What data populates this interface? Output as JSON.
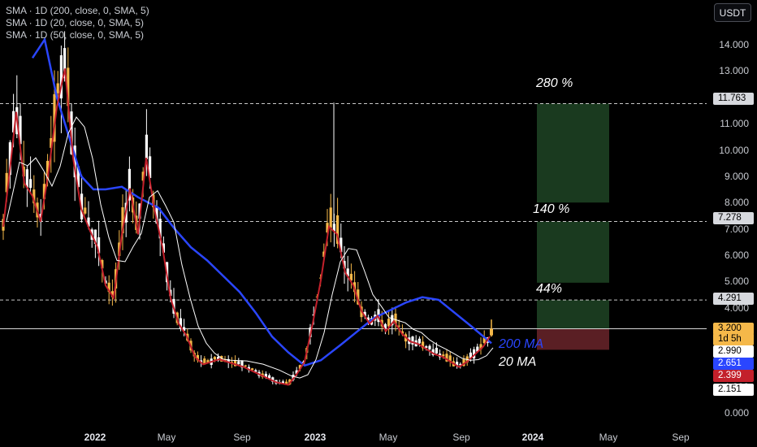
{
  "legend": [
    "SMA · 1D (200, close, 0, SMA, 5)",
    "SMA · 1D (20, close, 0, SMA, 5)",
    "SMA · 1D (50, close, 0, SMA, 5)"
  ],
  "currency_label": "USDT",
  "chart_data": {
    "type": "candlestick",
    "y_axis_ticks": [
      "14.000",
      "13.000",
      "12.000",
      "11.000",
      "10.000",
      "9.000",
      "8.000",
      "7.000",
      "6.000",
      "5.000",
      "4.000",
      "3.000",
      "2.000",
      "1.000",
      "0.000"
    ],
    "x_axis_ticks": [
      "2022",
      "May",
      "Sep",
      "2023",
      "May",
      "Sep",
      "2024",
      "May",
      "Sep"
    ],
    "price_levels": [
      {
        "label": "11.763",
        "bg": "#d7d9de",
        "fg": "#000000"
      },
      {
        "label": "7.278",
        "bg": "#d7d9de",
        "fg": "#000000"
      },
      {
        "label": "4.291",
        "bg": "#d7d9de",
        "fg": "#000000"
      },
      {
        "label": "3.200",
        "bg": "#f5b849",
        "fg": "#000000"
      },
      {
        "label": "1d 5h",
        "bg": "#f5b849",
        "fg": "#000000"
      },
      {
        "label": "2.990",
        "bg": "#ffffff",
        "fg": "#000000"
      },
      {
        "label": "2.651",
        "bg": "#2a46ff",
        "fg": "#ffffff"
      },
      {
        "label": "2.399",
        "bg": "#c3202b",
        "fg": "#ffffff"
      },
      {
        "label": "2.151",
        "bg": "#ffffff",
        "fg": "#000000"
      }
    ],
    "targets": [
      {
        "label": "280 %",
        "value": 11.763
      },
      {
        "label": "140 %",
        "value": 7.278
      },
      {
        "label": "44%",
        "value": 4.291
      }
    ],
    "current_price": 3.2,
    "entry_zone_low": 2.4,
    "ma_labels": [
      "200  MA",
      "20  MA"
    ],
    "colors": {
      "up": "#f5b849",
      "down": "#ffffff",
      "sma200": "#2a46ff",
      "sma20": "#c3202b",
      "sma50": "#ffffff",
      "target_box": "#1a3a1f",
      "stop_box": "#5a1f24"
    }
  }
}
